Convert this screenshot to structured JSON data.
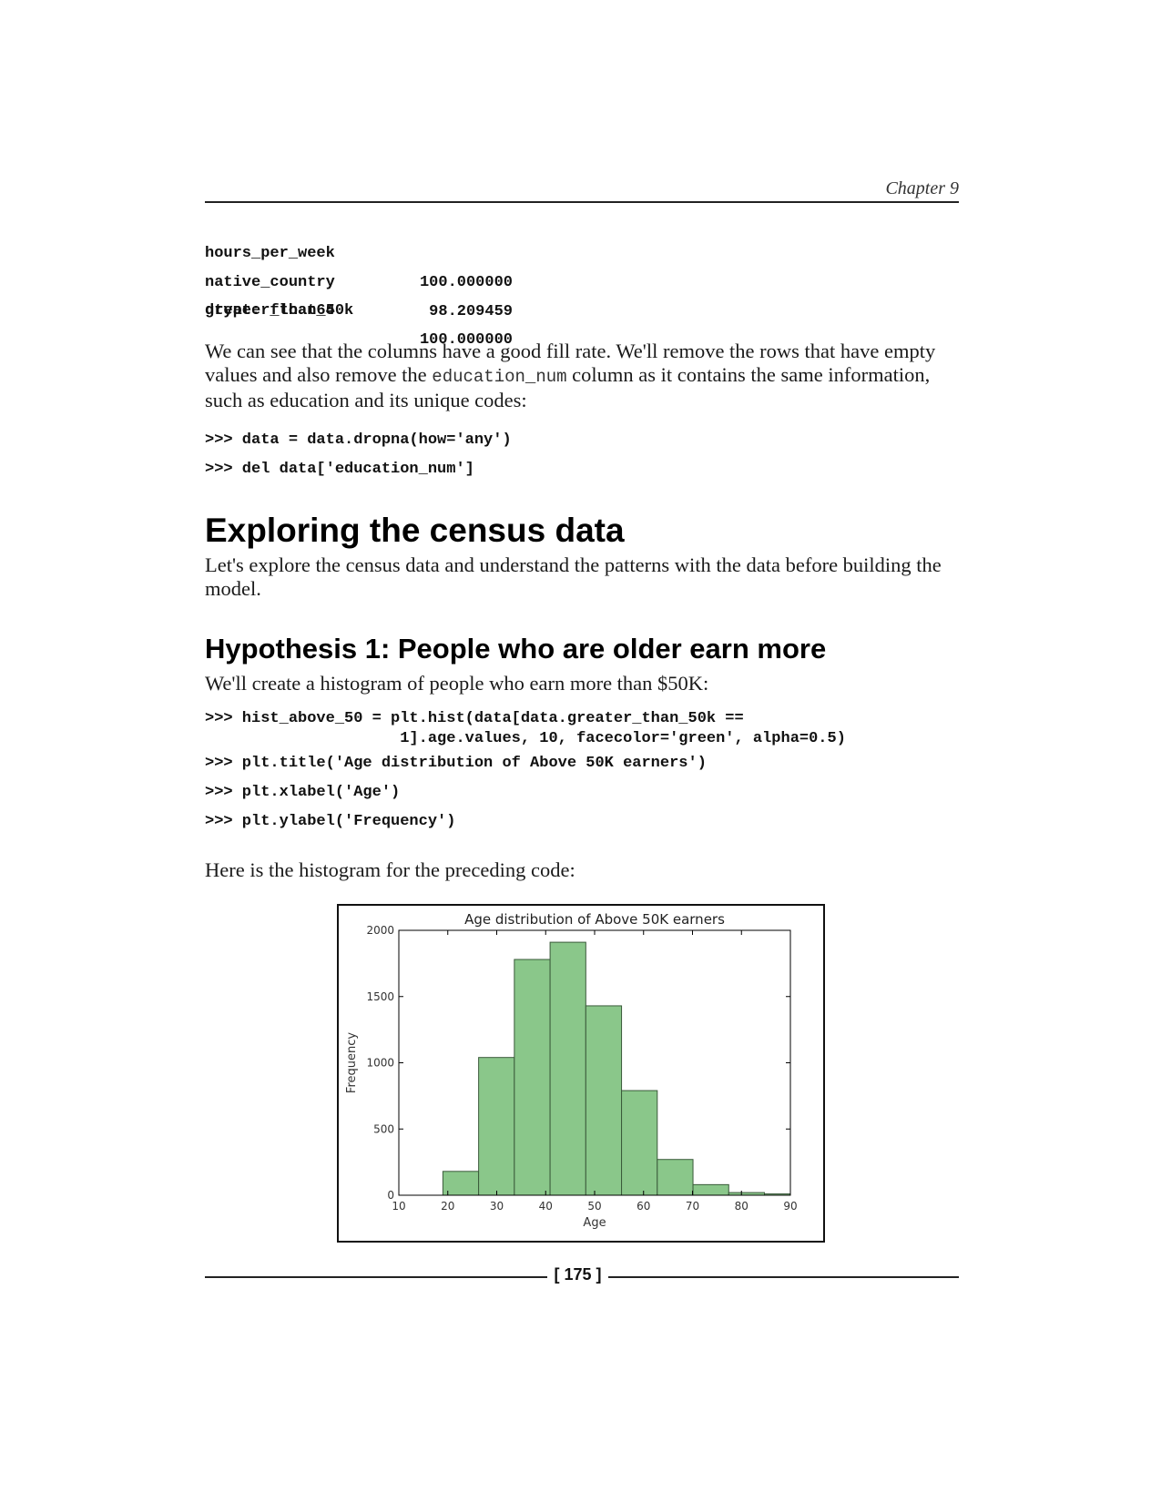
{
  "header": {
    "chapter": "Chapter 9"
  },
  "output_table": {
    "rows": [
      {
        "key": "hours_per_week",
        "value": "100.000000"
      },
      {
        "key": "native_country",
        "value": "98.209459"
      },
      {
        "key": "greater_than_50k",
        "value": "100.000000"
      }
    ],
    "dtype": "dtype: float64"
  },
  "paragraph1": {
    "part1": "We can see that the columns have a good fill rate. We'll remove the rows that have empty values and also remove the ",
    "code": "education_num",
    "part2": " column as it contains the same information, such as education and its unique codes:"
  },
  "code_block1": [
    ">>> data = data.dropna(how='any')",
    ">>> del data['education_num']"
  ],
  "section_title": "Exploring the census data",
  "paragraph2": "Let's explore the census data and understand the patterns with the data before building the model.",
  "subsection_title": "Hypothesis 1: People who are older earn more",
  "paragraph3": "We'll create a histogram of people who earn more than $50K:",
  "code_block2": {
    "line1a": ">>> hist_above_50 = plt.hist(data[data.greater_than_50k ==",
    "line1b": "                     1].age.values, 10, facecolor='green', alpha=0.5)",
    "line2": ">>> plt.title('Age distribution of Above 50K earners')",
    "line3": ">>> plt.xlabel('Age')",
    "line4": ">>> plt.ylabel('Frequency')"
  },
  "paragraph4": "Here is the histogram for the preceding code:",
  "chart_data": {
    "type": "bar",
    "title": "Age distribution of Above 50K earners",
    "xlabel": "Age",
    "ylabel": "Frequency",
    "xlim": [
      10,
      90
    ],
    "ylim": [
      0,
      2000
    ],
    "xticks": [
      10,
      20,
      30,
      40,
      50,
      60,
      70,
      80,
      90
    ],
    "yticks": [
      0,
      500,
      1000,
      1500,
      2000
    ],
    "bin_edges": [
      19,
      26.3,
      33.6,
      40.9,
      48.2,
      55.5,
      62.8,
      70.1,
      77.4,
      84.7,
      90
    ],
    "values": [
      180,
      1040,
      1780,
      1910,
      1430,
      790,
      270,
      80,
      20,
      10
    ],
    "bar_color": "#8ac78a",
    "edge_color": "#3a5a3a",
    "grid": false
  },
  "footer": {
    "page_number": "[ 175 ]"
  }
}
